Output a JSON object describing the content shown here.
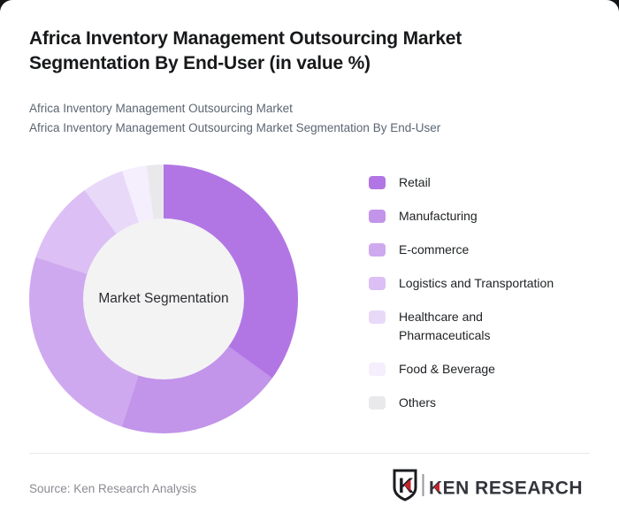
{
  "header": {
    "title": "Africa Inventory Management Outsourcing Market Segmentation By End-User (in value %)",
    "subtitle_line1": "Africa Inventory Management Outsourcing Market",
    "subtitle_line2": "Africa Inventory Management Outsourcing Market Segmentation By End-User"
  },
  "chart_data": {
    "type": "pie",
    "donut": true,
    "title": "Africa Inventory Management Outsourcing Market Segmentation By End-User (in value %)",
    "center_label": "Market Segmentation",
    "labels": [
      "Retail",
      "Manufacturing",
      "E-commerce",
      "Logistics and Transportation",
      "Healthcare and\nPharmaceuticals",
      "Food & Beverage",
      "Others"
    ],
    "values": [
      35,
      20,
      25,
      10,
      5,
      3,
      2
    ],
    "unit": "value %",
    "colors": [
      "#b176e4",
      "#c294ea",
      "#cfa9ef",
      "#dcbff4",
      "#e9d9f9",
      "#f5eefc",
      "#e9e9ec"
    ],
    "hole_color": "#f3f3f4",
    "start_angle_deg": 0,
    "direction": "clockwise",
    "legend_position": "right"
  },
  "footer": {
    "source": "Source: Ken Research Analysis",
    "logo_monogram": "K",
    "logo_wordmark": "KEN RESEARCH",
    "logo_accent_color": "#c5242b",
    "logo_text_color": "#33353c"
  }
}
